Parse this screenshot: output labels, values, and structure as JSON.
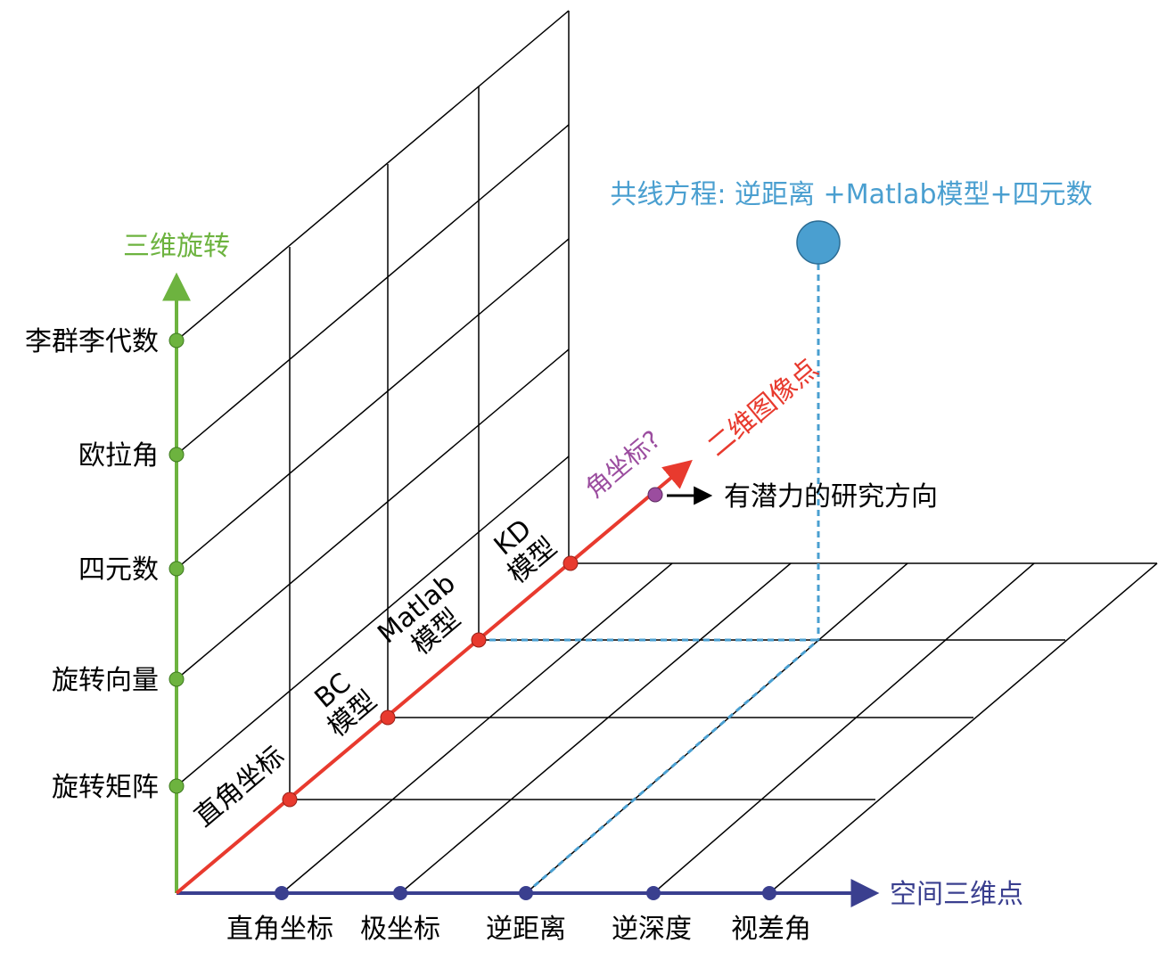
{
  "colors": {
    "vertical_axis": "#6db33f",
    "horizontal_axis": "#3a3f8f",
    "diagonal_axis": "#e83a2e",
    "collinearity": "#4a9fd0",
    "purple": "#9b4d9f",
    "grid": "#000000"
  },
  "vertical_axis": {
    "title": "三维旋转",
    "items": [
      "旋转矩阵",
      "旋转向量",
      "四元数",
      "欧拉角",
      "李群李代数"
    ]
  },
  "horizontal_axis": {
    "title": "空间三维点",
    "items": [
      "直角坐标",
      "极坐标",
      "逆距离",
      "逆深度",
      "视差角"
    ]
  },
  "diagonal_axis": {
    "title": "二维图像点",
    "items": [
      {
        "line1": "直角坐标",
        "line2": ""
      },
      {
        "line1": "BC",
        "line2": "模型"
      },
      {
        "line1": "Matlab",
        "line2": "模型"
      },
      {
        "line1": "KD",
        "line2": "模型"
      }
    ],
    "future_item": "角坐标?"
  },
  "future_note": "有潜力的研究方向",
  "collinearity_label": "共线方程: 逆距离 +Matlab模型+四元数"
}
